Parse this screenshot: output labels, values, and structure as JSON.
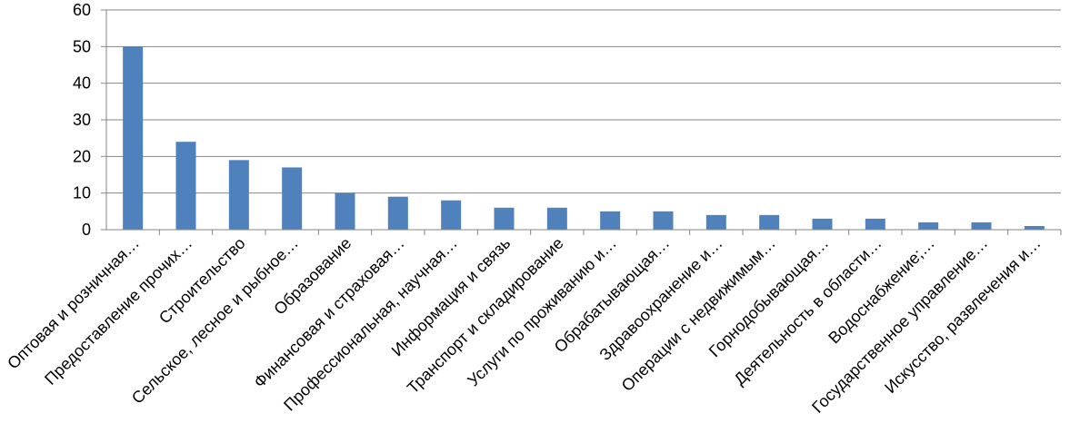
{
  "chart_data": {
    "type": "bar",
    "title": "",
    "xlabel": "",
    "ylabel": "",
    "ylim": [
      0,
      60
    ],
    "yticks": [
      0,
      10,
      20,
      30,
      40,
      50,
      60
    ],
    "grid": true,
    "legend": "none",
    "bar_color": "#4F81BD",
    "categories": [
      "Оптовая и розничная…",
      "Предоставление прочих…",
      "Строительство",
      "Сельское, лесное и рыбное…",
      "Образование",
      "Финансовая и страховая…",
      "Профессиональная, научная…",
      "Информация и связь",
      "Транспорт и складирование",
      "Услуги по проживанию и…",
      "Обрабатывающая…",
      "Здравоохранение и…",
      "Операции с недвижимым…",
      "Горнодобывающая…",
      "Деятельность в области…",
      "Водоснабжение;…",
      "Государственное управление…",
      "Искусство, развлечения и…"
    ],
    "values": [
      50,
      24,
      19,
      17,
      10,
      9,
      8,
      6,
      6,
      5,
      5,
      4,
      4,
      3,
      3,
      2,
      2,
      1
    ]
  }
}
